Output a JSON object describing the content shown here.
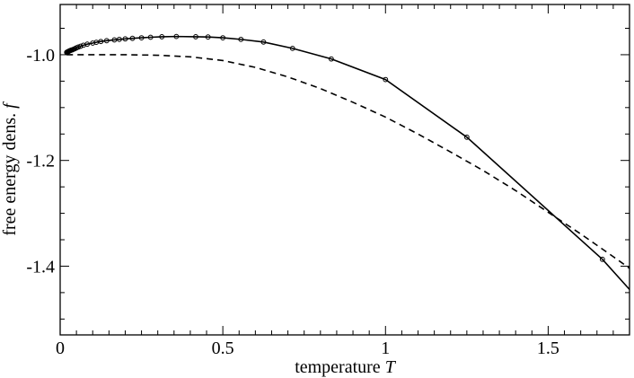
{
  "chart_data": {
    "type": "line",
    "title": "",
    "xlabel": "temperature",
    "xlabel_symbol": "T",
    "ylabel": "free energy dens.",
    "ylabel_symbol": "f",
    "xlim": [
      0,
      1.75
    ],
    "ylim": [
      -1.53,
      -0.905
    ],
    "xticks": [
      0,
      0.5,
      1,
      1.5
    ],
    "xtick_labels": [
      "0",
      "0.5",
      "1",
      "1.5"
    ],
    "yticks": [
      -1.0,
      -1.2,
      -1.4
    ],
    "ytick_labels": [
      "-1.0",
      "-1.2",
      "-1.4"
    ],
    "x_minor_step": 0.05,
    "y_minor_step": 0.05,
    "grid": false,
    "legend": "none",
    "series": [
      {
        "style": "solid",
        "marker": "circle",
        "color": "#000000",
        "x": [
          0.02,
          0.0217,
          0.0233,
          0.025,
          0.0263,
          0.0278,
          0.0294,
          0.0313,
          0.0333,
          0.0357,
          0.0385,
          0.0417,
          0.0455,
          0.05,
          0.0556,
          0.0625,
          0.0714,
          0.0833,
          0.1,
          0.1111,
          0.125,
          0.1429,
          0.1667,
          0.1818,
          0.2,
          0.2222,
          0.25,
          0.2778,
          0.3125,
          0.3571,
          0.4167,
          0.4545,
          0.5,
          0.5556,
          0.625,
          0.7143,
          0.8333,
          1.0,
          1.25,
          1.6667
        ],
        "y": [
          -0.9955,
          -0.995,
          -0.9945,
          -0.994,
          -0.9935,
          -0.993,
          -0.9925,
          -0.992,
          -0.9915,
          -0.991,
          -0.9905,
          -0.9895,
          -0.9885,
          -0.987,
          -0.9855,
          -0.984,
          -0.982,
          -0.98,
          -0.978,
          -0.9765,
          -0.975,
          -0.9735,
          -0.972,
          -0.971,
          -0.97,
          -0.969,
          -0.968,
          -0.967,
          -0.966,
          -0.9655,
          -0.966,
          -0.9665,
          -0.968,
          -0.971,
          -0.976,
          -0.988,
          -1.008,
          -1.047,
          -1.156,
          -1.387
        ],
        "line_extension": {
          "x": [
            1.75
          ],
          "y": [
            -1.444
          ]
        }
      },
      {
        "style": "dashed",
        "marker": "none",
        "color": "#000000",
        "x": [
          0.02,
          0.1,
          0.2,
          0.3,
          0.4,
          0.5,
          0.6,
          0.7,
          0.8,
          0.9,
          1.0,
          1.1,
          1.2,
          1.3,
          1.4,
          1.5,
          1.6,
          1.7,
          1.75
        ],
        "y": [
          -1.0,
          -1.0,
          -1.0,
          -1.001,
          -1.004,
          -1.011,
          -1.024,
          -1.042,
          -1.064,
          -1.09,
          -1.118,
          -1.15,
          -1.184,
          -1.219,
          -1.257,
          -1.298,
          -1.339,
          -1.382,
          -1.404
        ]
      }
    ]
  }
}
